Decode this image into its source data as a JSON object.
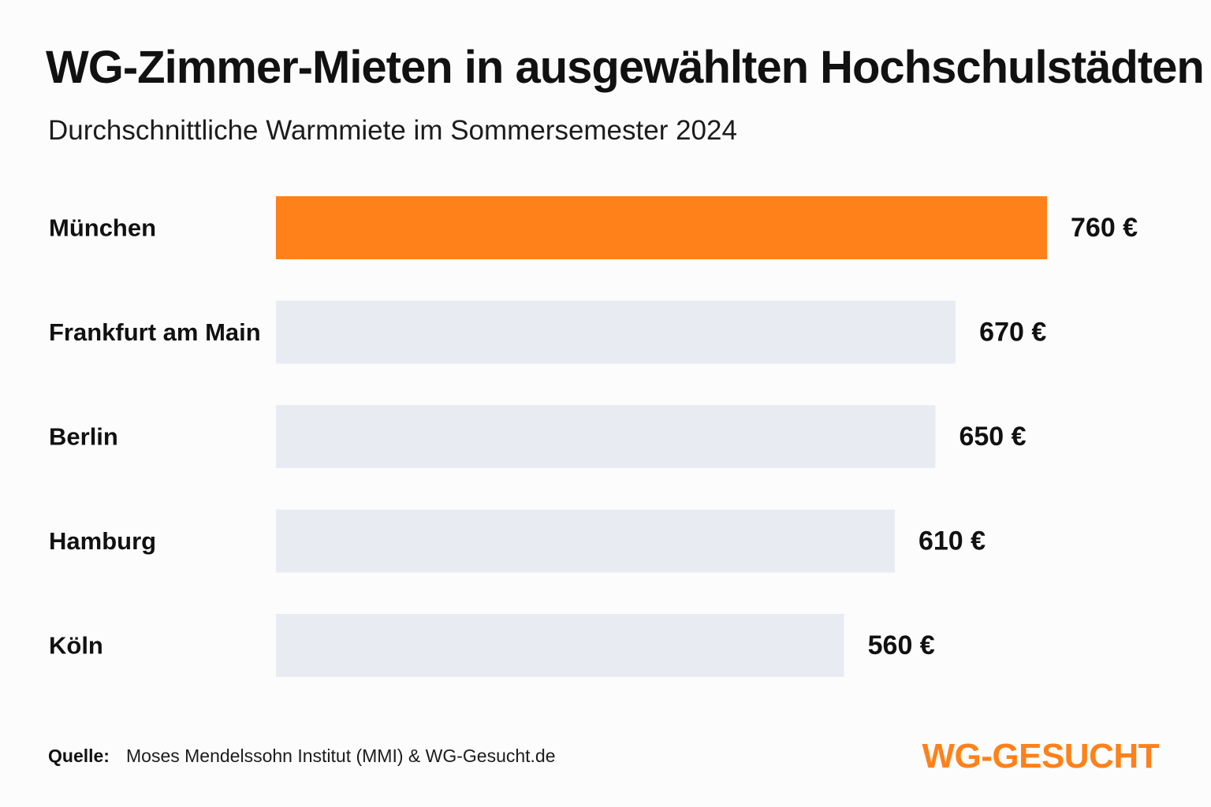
{
  "title": "WG-Zimmer-Mieten in ausgewählten Hochschulstädten",
  "subtitle": "Durchschnittliche Warmmiete im Sommersemester 2024",
  "chart_data": {
    "type": "bar",
    "orientation": "horizontal",
    "categories": [
      "München",
      "Frankfurt am Main",
      "Berlin",
      "Hamburg",
      "Köln"
    ],
    "values": [
      760,
      670,
      650,
      610,
      560
    ],
    "value_labels": [
      "760 €",
      "670 €",
      "650 €",
      "610 €",
      "560 €"
    ],
    "highlight_index": 0,
    "xlim": [
      0,
      760
    ],
    "grid": false,
    "legend": "none"
  },
  "colors": {
    "highlight": "#ff8119",
    "bar": "#e8ecf2",
    "text": "#111111",
    "brand": "#ff8119"
  },
  "source": {
    "label": "Quelle:",
    "text": "Moses Mendelssohn Institut (MMI) & WG-Gesucht.de"
  },
  "brand": "WG-GESUCHT"
}
